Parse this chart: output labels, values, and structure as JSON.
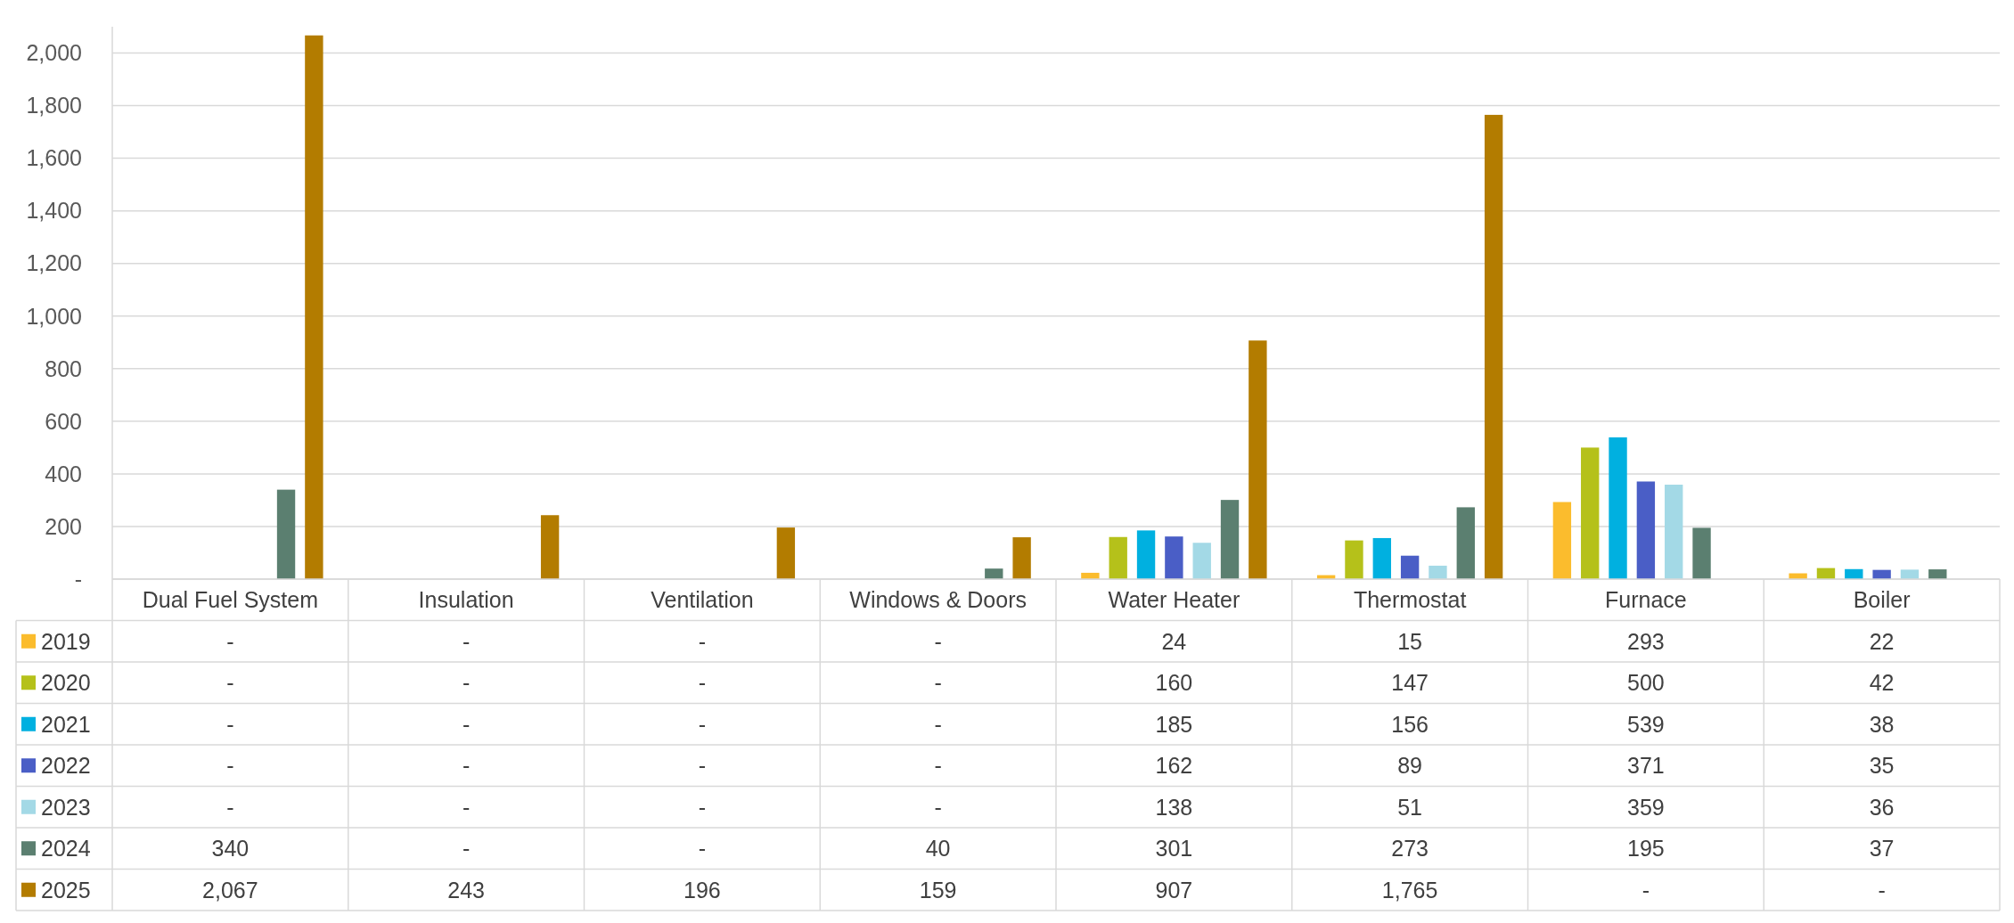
{
  "chart_data": {
    "type": "bar",
    "categories": [
      "Dual Fuel System",
      "Insulation",
      "Ventilation",
      "Windows & Doors",
      "Water Heater",
      "Thermostat",
      "Furnace",
      "Boiler"
    ],
    "series": [
      {
        "name": "2019",
        "color": "#fbbc2d",
        "values": [
          0,
          0,
          0,
          0,
          24,
          15,
          293,
          22
        ],
        "value_labels": [
          "-",
          "-",
          "-",
          "-",
          "24",
          "15",
          "293",
          "22"
        ]
      },
      {
        "name": "2020",
        "color": "#b5c11a",
        "values": [
          0,
          0,
          0,
          0,
          160,
          147,
          500,
          42
        ],
        "value_labels": [
          "-",
          "-",
          "-",
          "-",
          "160",
          "147",
          "500",
          "42"
        ]
      },
      {
        "name": "2021",
        "color": "#00b0e0",
        "values": [
          0,
          0,
          0,
          0,
          185,
          156,
          539,
          38
        ],
        "value_labels": [
          "-",
          "-",
          "-",
          "-",
          "185",
          "156",
          "539",
          "38"
        ]
      },
      {
        "name": "2022",
        "color": "#4a5ec6",
        "values": [
          0,
          0,
          0,
          0,
          162,
          89,
          371,
          35
        ],
        "value_labels": [
          "-",
          "-",
          "-",
          "-",
          "162",
          "89",
          "371",
          "35"
        ]
      },
      {
        "name": "2023",
        "color": "#a3d9e6",
        "values": [
          0,
          0,
          0,
          0,
          138,
          51,
          359,
          36
        ],
        "value_labels": [
          "-",
          "-",
          "-",
          "-",
          "138",
          "51",
          "359",
          "36"
        ]
      },
      {
        "name": "2024",
        "color": "#5b7f70",
        "values": [
          340,
          0,
          0,
          40,
          301,
          273,
          195,
          37
        ],
        "value_labels": [
          "340",
          "-",
          "-",
          "40",
          "301",
          "273",
          "195",
          "37"
        ]
      },
      {
        "name": "2025",
        "color": "#b37c00",
        "values": [
          2067,
          243,
          196,
          159,
          907,
          1765,
          0,
          0
        ],
        "value_labels": [
          "2,067",
          "243",
          "196",
          "159",
          "907",
          "1,765",
          "-",
          "-"
        ]
      }
    ],
    "ylim": [
      0,
      2100
    ],
    "yticks": [
      {
        "value": 0,
        "label": "-"
      },
      200,
      400,
      600,
      800,
      {
        "value": 1000,
        "label": "1,000"
      },
      {
        "value": 1200,
        "label": "1,200"
      },
      {
        "value": 1400,
        "label": "1,400"
      },
      {
        "value": 1600,
        "label": "1,600"
      },
      {
        "value": 1800,
        "label": "1,800"
      },
      {
        "value": 2000,
        "label": "2,000"
      }
    ],
    "grid": "y",
    "legend": "bottom"
  }
}
